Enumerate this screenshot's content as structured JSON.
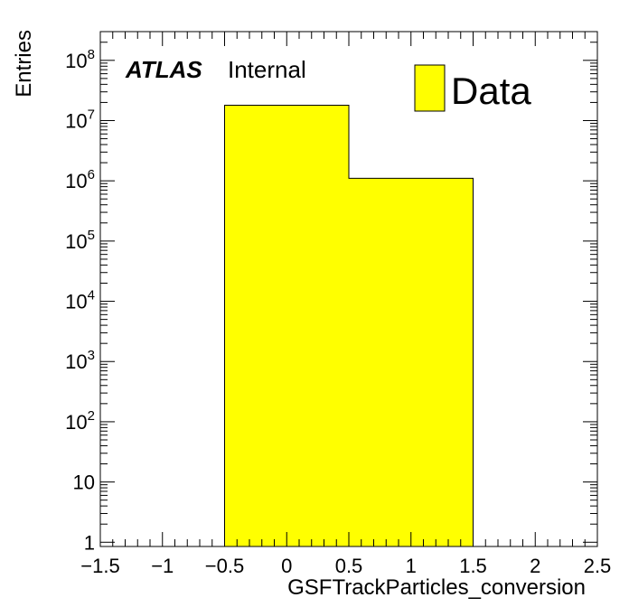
{
  "chart_data": {
    "type": "bar",
    "xlabel": "GSFTrackParticles_conversion",
    "ylabel": "Entries",
    "xlim": [
      -1.5,
      2.5
    ],
    "ylim": [
      0.85,
      300000000
    ],
    "yscale": "log",
    "x_ticks": [
      "−1.5",
      "−1",
      "−0.5",
      "0",
      "0.5",
      "1",
      "1.5",
      "2",
      "2.5"
    ],
    "x_tick_values": [
      -1.5,
      -1,
      -0.5,
      0,
      0.5,
      1,
      1.5,
      2,
      2.5
    ],
    "y_tick_values": [
      1,
      10,
      100,
      1000,
      10000,
      100000,
      1000000,
      10000000,
      100000000
    ],
    "y_ticks": [
      {
        "base": "1",
        "exp": ""
      },
      {
        "base": "10",
        "exp": ""
      },
      {
        "base": "10",
        "exp": "2"
      },
      {
        "base": "10",
        "exp": "3"
      },
      {
        "base": "10",
        "exp": "4"
      },
      {
        "base": "10",
        "exp": "5"
      },
      {
        "base": "10",
        "exp": "6"
      },
      {
        "base": "10",
        "exp": "7"
      },
      {
        "base": "10",
        "exp": "8"
      }
    ],
    "bins": [
      {
        "low": -0.5,
        "high": 0.5,
        "value": 18000000
      },
      {
        "low": 0.5,
        "high": 1.5,
        "value": 1100000
      }
    ],
    "series": [
      {
        "name": "Data",
        "color": "#ffff00"
      }
    ],
    "legend": {
      "entries": [
        "Data"
      ],
      "position": "top-right"
    },
    "annotation": {
      "experiment": "ATLAS",
      "status": "Internal"
    }
  }
}
